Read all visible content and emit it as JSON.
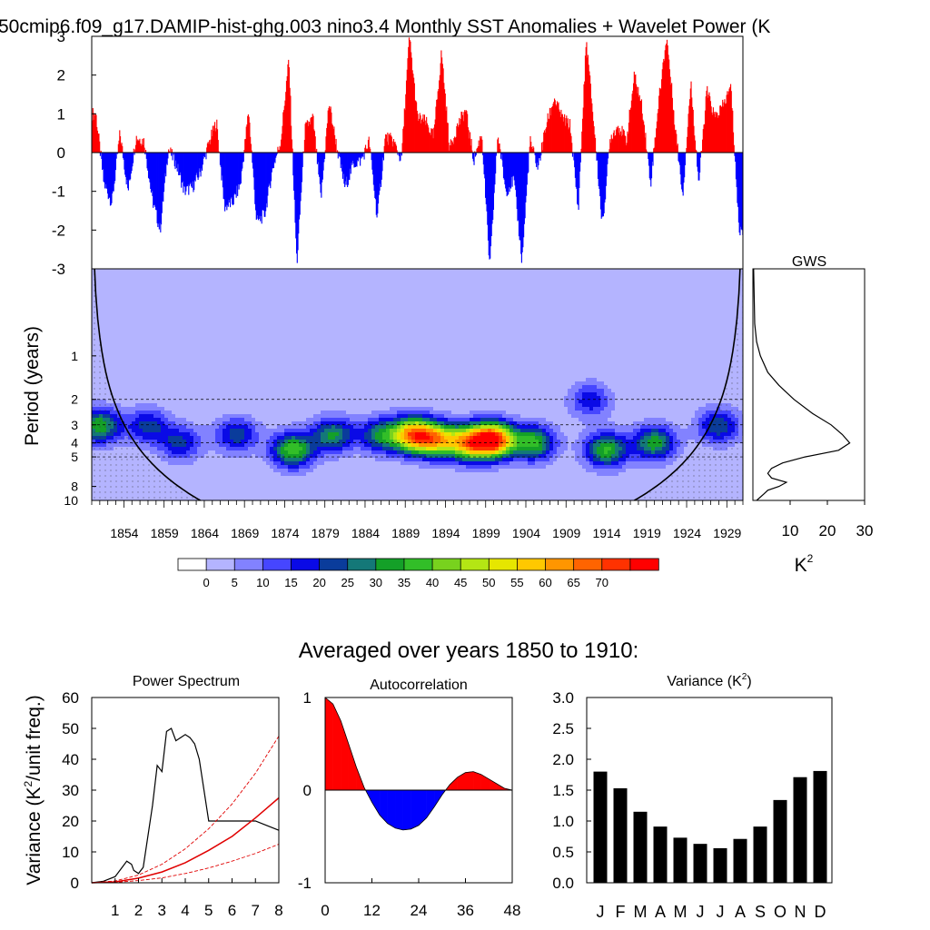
{
  "figure": {
    "title": "50cmip6.f09_g17.DAMIP-hist-ghg.003 nino3.4 Monthly SST Anomalies + Wavelet Power (K",
    "wavelet_ylabel": "Period (years)",
    "gws_title": "GWS",
    "gws_unit": "K",
    "gws_unit_exp": "2",
    "bottom_title": "Averaged over years 1850 to 1910:",
    "power_ylabel_pre": "Variance (K",
    "power_ylabel_exp": "2",
    "power_ylabel_post": "/unit freq.)",
    "variance_title_pre": "Variance (K",
    "variance_title_exp": "2",
    "variance_title_post": ")"
  },
  "colors": {
    "positive": "#ff0000",
    "negative": "#0000ff",
    "bar": "#000000",
    "red_line": "#e00000",
    "levels": [
      "#ffffff",
      "#b4b4ff",
      "#8282ff",
      "#4646ff",
      "#0a0ae6",
      "#0a3c9b",
      "#147878",
      "#14a028",
      "#32be28",
      "#78d21e",
      "#b4e614",
      "#e6e600",
      "#ffc800",
      "#ff9600",
      "#ff6400",
      "#ff3200",
      "#ff0000"
    ]
  },
  "chart_data": [
    {
      "type": "bar",
      "name": "sst_anomalies",
      "ylim": [
        -3,
        3
      ],
      "yticks": [
        -3,
        -2,
        -1,
        0,
        1,
        2,
        3
      ],
      "xlim": [
        1850,
        1931
      ],
      "values_by_year": [
        [
          1850,
          1.0
        ],
        [
          1851,
          -0.8
        ],
        [
          1852,
          -1.3
        ],
        [
          1853,
          0.5
        ],
        [
          1854,
          -1.0
        ],
        [
          1855,
          0.4
        ],
        [
          1856,
          0.3
        ],
        [
          1857,
          -1.2
        ],
        [
          1858,
          -2.0
        ],
        [
          1859,
          0.1
        ],
        [
          1860,
          -0.3
        ],
        [
          1861,
          -1.0
        ],
        [
          1862,
          -0.9
        ],
        [
          1863,
          -0.5
        ],
        [
          1864,
          0.2
        ],
        [
          1865,
          0.8
        ],
        [
          1866,
          -1.4
        ],
        [
          1867,
          -1.3
        ],
        [
          1868,
          -0.8
        ],
        [
          1869,
          1.1
        ],
        [
          1870,
          -1.8
        ],
        [
          1871,
          -1.6
        ],
        [
          1872,
          -0.4
        ],
        [
          1873,
          0.3
        ],
        [
          1874,
          2.4
        ],
        [
          1875,
          -2.9
        ],
        [
          1876,
          0.6
        ],
        [
          1877,
          0.9
        ],
        [
          1878,
          -1.2
        ],
        [
          1879,
          1.3
        ],
        [
          1880,
          0.1
        ],
        [
          1881,
          -0.9
        ],
        [
          1882,
          -0.3
        ],
        [
          1883,
          -0.2
        ],
        [
          1884,
          0.3
        ],
        [
          1885,
          -1.7
        ],
        [
          1886,
          0.4
        ],
        [
          1887,
          0.3
        ],
        [
          1888,
          -0.2
        ],
        [
          1889,
          3.0
        ],
        [
          1890,
          0.9
        ],
        [
          1891,
          0.8
        ],
        [
          1892,
          0.4
        ],
        [
          1893,
          2.6
        ],
        [
          1894,
          0.1
        ],
        [
          1895,
          0.7
        ],
        [
          1896,
          1.1
        ],
        [
          1897,
          -0.2
        ],
        [
          1898,
          0.5
        ],
        [
          1899,
          -3.0
        ],
        [
          1900,
          0.5
        ],
        [
          1901,
          -1.0
        ],
        [
          1902,
          -0.7
        ],
        [
          1903,
          -2.8
        ],
        [
          1904,
          0.3
        ],
        [
          1905,
          -0.4
        ],
        [
          1906,
          0.7
        ],
        [
          1907,
          1.4
        ],
        [
          1908,
          0.9
        ],
        [
          1909,
          0.7
        ],
        [
          1910,
          -1.5
        ],
        [
          1911,
          2.9
        ],
        [
          1912,
          0.6
        ],
        [
          1913,
          -1.9
        ],
        [
          1914,
          0.4
        ],
        [
          1915,
          0.7
        ],
        [
          1916,
          0.3
        ],
        [
          1917,
          2.0
        ],
        [
          1918,
          1.1
        ],
        [
          1919,
          -0.8
        ],
        [
          1920,
          1.3
        ],
        [
          1921,
          3.0
        ],
        [
          1922,
          0.8
        ],
        [
          1923,
          -1.1
        ],
        [
          1924,
          1.8
        ],
        [
          1925,
          -0.8
        ],
        [
          1926,
          1.6
        ],
        [
          1927,
          0.9
        ],
        [
          1928,
          1.2
        ],
        [
          1929,
          1.7
        ],
        [
          1930,
          -2.0
        ]
      ]
    },
    {
      "type": "heatmap",
      "name": "wavelet_power",
      "xlabel": "",
      "ylabel": "Period (years)",
      "yticks": [
        1,
        2,
        3,
        4,
        5,
        8,
        10
      ],
      "xticks": [
        1854,
        1859,
        1864,
        1869,
        1874,
        1879,
        1884,
        1889,
        1894,
        1899,
        1904,
        1909,
        1914,
        1919,
        1924,
        1929
      ],
      "period_range": [
        0.25,
        10
      ],
      "colorbar_levels": [
        0,
        5,
        10,
        15,
        20,
        25,
        30,
        35,
        40,
        45,
        50,
        55,
        60,
        65,
        70
      ],
      "cone_of_influence_period_at_edges": 10.5,
      "power_peaks": [
        {
          "year": 1851,
          "period": 3.0,
          "power": 35
        },
        {
          "year": 1857,
          "period": 3.0,
          "power": 22
        },
        {
          "year": 1861,
          "period": 4.0,
          "power": 20
        },
        {
          "year": 1868,
          "period": 3.5,
          "power": 22
        },
        {
          "year": 1875,
          "period": 4.5,
          "power": 38
        },
        {
          "year": 1880,
          "period": 3.5,
          "power": 30
        },
        {
          "year": 1886,
          "period": 3.5,
          "power": 28
        },
        {
          "year": 1890,
          "period": 3.5,
          "power": 60
        },
        {
          "year": 1893,
          "period": 3.8,
          "power": 47
        },
        {
          "year": 1897,
          "period": 4.0,
          "power": 52
        },
        {
          "year": 1900,
          "period": 3.8,
          "power": 72
        },
        {
          "year": 1905,
          "period": 4.0,
          "power": 35
        },
        {
          "year": 1912,
          "period": 2.0,
          "power": 22
        },
        {
          "year": 1914,
          "period": 4.5,
          "power": 35
        },
        {
          "year": 1920,
          "period": 4.0,
          "power": 32
        },
        {
          "year": 1928,
          "period": 3.0,
          "power": 25
        }
      ]
    },
    {
      "type": "line",
      "name": "global_wavelet_spectrum",
      "title": "GWS",
      "xlabel": "K2",
      "xlim": [
        0,
        30
      ],
      "xticks": [
        10,
        20,
        30
      ],
      "period": [
        0.25,
        0.6,
        0.8,
        1.0,
        1.3,
        1.6,
        2.0,
        2.5,
        3.0,
        3.5,
        4.0,
        4.5,
        5.0,
        5.5,
        6.0,
        6.5,
        7.0,
        7.5,
        8.0,
        8.5,
        9.0,
        10.0
      ],
      "power": [
        0.2,
        0.5,
        1.0,
        2.0,
        4.0,
        7.0,
        11.0,
        16.0,
        21.0,
        24.0,
        26.0,
        23.0,
        14.0,
        8.0,
        5.0,
        4.0,
        5.0,
        9.0,
        7.0,
        4.0,
        3.0,
        1.0
      ]
    },
    {
      "type": "line",
      "name": "power_spectrum",
      "title": "Power Spectrum",
      "ylabel": "Variance (K2/unit freq.)",
      "xlim": [
        0,
        8
      ],
      "ylim": [
        0,
        60
      ],
      "xticks": [
        1,
        2,
        3,
        4,
        5,
        6,
        7,
        8
      ],
      "yticks": [
        0,
        10,
        20,
        30,
        40,
        50,
        60
      ],
      "series": [
        {
          "x": [
            0.0,
            0.5,
            1.0,
            1.3,
            1.5,
            1.7,
            1.8,
            2.0,
            2.2,
            2.4,
            2.6,
            2.8,
            3.0,
            3.2,
            3.4,
            3.6,
            3.8,
            4.0,
            4.2,
            4.4,
            4.6,
            4.8,
            5.0,
            5.5,
            6.0,
            6.5,
            7.0,
            7.5,
            8.0
          ],
          "y": [
            0.0,
            0.5,
            2.0,
            5.0,
            7.0,
            6.0,
            4.0,
            3.0,
            5.0,
            15.0,
            25.0,
            38.0,
            36.0,
            49.0,
            50.0,
            46.0,
            47.0,
            48.0,
            47.0,
            45.0,
            40.0,
            30.0,
            20.0,
            20.0,
            20.0,
            20.0,
            20.0,
            18.5,
            17.0
          ]
        },
        {
          "x": [
            0,
            1,
            2,
            3,
            4,
            5,
            6,
            7,
            8
          ],
          "y": [
            0.0,
            0.3,
            1.5,
            3.5,
            6.5,
            10.5,
            15.0,
            21.0,
            27.5
          ]
        },
        {
          "x": [
            0,
            1,
            2,
            3,
            4,
            5,
            6,
            7,
            8
          ],
          "y": [
            0.0,
            0.6,
            2.5,
            6.0,
            11.0,
            17.5,
            25.5,
            35.5,
            47.5
          ]
        },
        {
          "x": [
            0,
            1,
            2,
            3,
            4,
            5,
            6,
            7,
            8
          ],
          "y": [
            0.0,
            0.15,
            0.7,
            1.6,
            3.0,
            4.8,
            7.0,
            9.5,
            12.5
          ]
        }
      ]
    },
    {
      "type": "area",
      "name": "autocorrelation",
      "title": "Autocorrelation",
      "xlim": [
        0,
        48
      ],
      "ylim": [
        -1,
        1
      ],
      "xticks": [
        0,
        12,
        24,
        36,
        48
      ],
      "yticks": [
        -1,
        0,
        1
      ],
      "x": [
        0,
        2,
        4,
        6,
        8,
        10,
        12,
        14,
        16,
        18,
        20,
        22,
        24,
        26,
        28,
        30,
        32,
        34,
        36,
        38,
        40,
        42,
        44,
        46,
        48
      ],
      "y": [
        1.0,
        0.93,
        0.75,
        0.5,
        0.25,
        0.03,
        -0.13,
        -0.27,
        -0.36,
        -0.41,
        -0.43,
        -0.42,
        -0.38,
        -0.3,
        -0.18,
        -0.05,
        0.06,
        0.14,
        0.19,
        0.2,
        0.17,
        0.12,
        0.07,
        0.02,
        0.0
      ]
    },
    {
      "type": "bar",
      "name": "monthly_variance",
      "categories": [
        "J",
        "F",
        "M",
        "A",
        "M",
        "J",
        "J",
        "A",
        "S",
        "O",
        "N",
        "D"
      ],
      "values": [
        1.8,
        1.53,
        1.15,
        0.91,
        0.73,
        0.63,
        0.56,
        0.71,
        0.91,
        1.34,
        1.71,
        1.81
      ],
      "ylim": [
        0,
        3
      ],
      "yticks": [
        "0.0",
        "0.5",
        "1.0",
        "1.5",
        "2.0",
        "2.5",
        "3.0"
      ]
    }
  ]
}
